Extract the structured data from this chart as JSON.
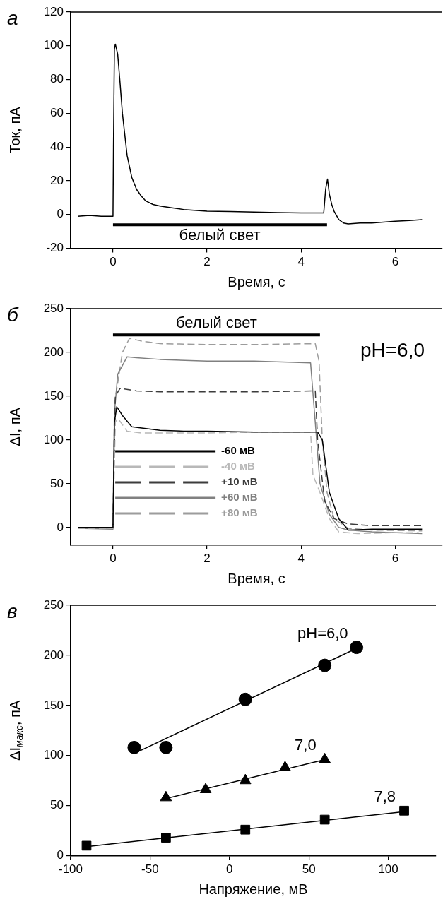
{
  "chart_data": [
    {
      "type": "line",
      "title": "а",
      "xlabel": "Время, с",
      "ylabel": "Ток, пА",
      "xlim": [
        -0.9,
        7
      ],
      "xticks": [
        0,
        2,
        4,
        6
      ],
      "ylim": [
        -20,
        120
      ],
      "yticks": [
        -20,
        0,
        20,
        40,
        60,
        80,
        100,
        120
      ],
      "grid": false,
      "legend": false,
      "marker": "none",
      "line_style": "solid",
      "annotations": [
        {
          "text": "белый свет",
          "x": 2.27,
          "y": -6
        }
      ],
      "series": [
        {
          "color": "#000000",
          "x": [
            0,
            4.55
          ],
          "values": [
            -6,
            -6
          ]
        },
        {
          "color": "#000000",
          "x": [
            -0.75,
            -0.5,
            -0.25,
            0,
            0.01,
            0.03,
            0.05,
            0.1,
            0.15,
            0.2,
            0.3,
            0.4,
            0.5,
            0.6,
            0.7,
            0.85,
            1.0,
            1.25,
            1.5,
            2.0,
            2.5,
            3.0,
            3.5,
            4.0,
            4.48,
            4.52,
            4.56,
            4.6,
            4.65,
            4.7,
            4.8,
            4.9,
            5.0,
            5.25,
            5.5,
            6.0,
            6.3,
            6.57
          ],
          "values": [
            -1,
            -0.5,
            -1,
            -1,
            40,
            98,
            101,
            95,
            78,
            60,
            35,
            22,
            15,
            11,
            8,
            6,
            5,
            4,
            3,
            2,
            1.8,
            1.5,
            1.2,
            1,
            1,
            15,
            21,
            12,
            6,
            2,
            -3,
            -5,
            -5.5,
            -5,
            -5,
            -4,
            -3.5,
            -3
          ]
        }
      ]
    },
    {
      "type": "line",
      "title": "б",
      "xlabel": "Время, с",
      "ylabel": "ΔI, пА",
      "xlim": [
        -0.9,
        7
      ],
      "xticks": [
        0,
        2,
        4,
        6
      ],
      "ylim": [
        -20,
        250
      ],
      "yticks": [
        0,
        50,
        100,
        150,
        200,
        250
      ],
      "grid": false,
      "legend": "bottom left",
      "marker": "none",
      "annotations": [
        {
          "text": "белый свет",
          "x": 2.2,
          "y": 220
        },
        "pH=6,0"
      ],
      "series": [
        {
          "color": "#000000",
          "x": [
            0,
            4.4
          ],
          "values": [
            220,
            220
          ]
        },
        {
          "name": "-60 мВ",
          "color": "#000000",
          "line_style": "solid",
          "x": [
            -0.75,
            0,
            0.03,
            0.08,
            0.2,
            0.4,
            0.7,
            1.0,
            1.5,
            2.0,
            3.0,
            4.2,
            4.35,
            4.45,
            4.6,
            4.8,
            5.0,
            5.5,
            6.57
          ],
          "values": [
            0,
            0,
            120,
            138,
            128,
            115,
            113,
            111,
            110,
            110,
            109,
            109,
            109,
            100,
            40,
            10,
            -3,
            -2,
            -2
          ]
        },
        {
          "name": "-40 мВ",
          "color": "#b8b8b8",
          "line_style": "dashed",
          "x": [
            -0.75,
            0,
            0.05,
            0.1,
            0.3,
            0.6,
            1.0,
            2.0,
            3.0,
            4.2,
            4.25,
            4.4,
            4.6,
            4.8,
            5.2,
            6.0,
            6.5
          ],
          "values": [
            -1,
            -1,
            120,
            125,
            110,
            108,
            108,
            108,
            109,
            109,
            60,
            40,
            10,
            -5,
            -7,
            -6,
            -6
          ]
        },
        {
          "name": "+10 мВ",
          "color": "#3c3c3c",
          "line_style": "dashed",
          "x": [
            -0.75,
            0,
            0.05,
            0.15,
            0.5,
            1.0,
            2.0,
            3.0,
            4.3,
            4.35,
            4.5,
            4.7,
            5.0,
            5.5,
            6.57
          ],
          "values": [
            0,
            0,
            150,
            159,
            156,
            155,
            155,
            155,
            156,
            100,
            30,
            10,
            4,
            2,
            2
          ]
        },
        {
          "name": "+60 мВ",
          "color": "#808080",
          "line_style": "solid",
          "x": [
            -0.75,
            0,
            0.03,
            0.1,
            0.3,
            0.5,
            1.0,
            2.0,
            3.0,
            4.2,
            4.3,
            4.4,
            4.6,
            4.8,
            5.0,
            5.5,
            6.57
          ],
          "values": [
            -1,
            -2,
            130,
            175,
            195,
            194,
            192,
            190,
            190,
            188,
            120,
            50,
            15,
            0,
            -3,
            -5,
            -7
          ]
        },
        {
          "name": "+80 мВ",
          "color": "#9c9c9c",
          "line_style": "dashed",
          "x": [
            -0.75,
            0,
            0.03,
            0.2,
            0.35,
            0.6,
            1.0,
            2.0,
            3.0,
            4.3,
            4.38,
            4.45,
            4.55,
            4.7,
            5.0,
            5.5,
            6.57
          ],
          "values": [
            -1,
            -1,
            140,
            200,
            216,
            213,
            210,
            209,
            209,
            210,
            190,
            100,
            40,
            10,
            -1,
            -3,
            -4
          ]
        }
      ]
    },
    {
      "type": "scatter",
      "title": "в",
      "xlabel": "Напряжение, мВ",
      "ylabel": "ΔI$_{макс}$, пА",
      "xlim": [
        -100,
        130
      ],
      "xticks": [
        -100,
        -50,
        0,
        50,
        100
      ],
      "ylim": [
        0,
        250
      ],
      "yticks": [
        0,
        50,
        100,
        150,
        200,
        250
      ],
      "grid": false,
      "legend": false,
      "series": [
        {
          "name": "pH=6,0",
          "type": "scatter",
          "marker": "circle",
          "color": "#000000",
          "x": [
            -60,
            -40,
            10,
            60,
            80
          ],
          "values": [
            108,
            108,
            156,
            190,
            208
          ]
        },
        {
          "type": "line",
          "marker": "none",
          "color": "#000000",
          "x": [
            -60,
            80
          ],
          "values": [
            102,
            207
          ]
        },
        {
          "name": "7,0",
          "type": "scatter",
          "marker": "triangle",
          "color": "#000000",
          "x": [
            -40,
            -15,
            10,
            35,
            60
          ],
          "values": [
            58,
            66,
            75,
            88,
            96
          ]
        },
        {
          "type": "line",
          "marker": "none",
          "color": "#000000",
          "x": [
            -40,
            60
          ],
          "values": [
            57,
            96
          ]
        },
        {
          "name": "7,8",
          "type": "scatter",
          "marker": "square",
          "color": "#000000",
          "x": [
            -90,
            -40,
            10,
            60,
            110
          ],
          "values": [
            10,
            18,
            26,
            36,
            45
          ]
        },
        {
          "type": "line",
          "marker": "none",
          "color": "#000000",
          "x": [
            -90,
            110
          ],
          "values": [
            9,
            44
          ]
        }
      ]
    }
  ]
}
